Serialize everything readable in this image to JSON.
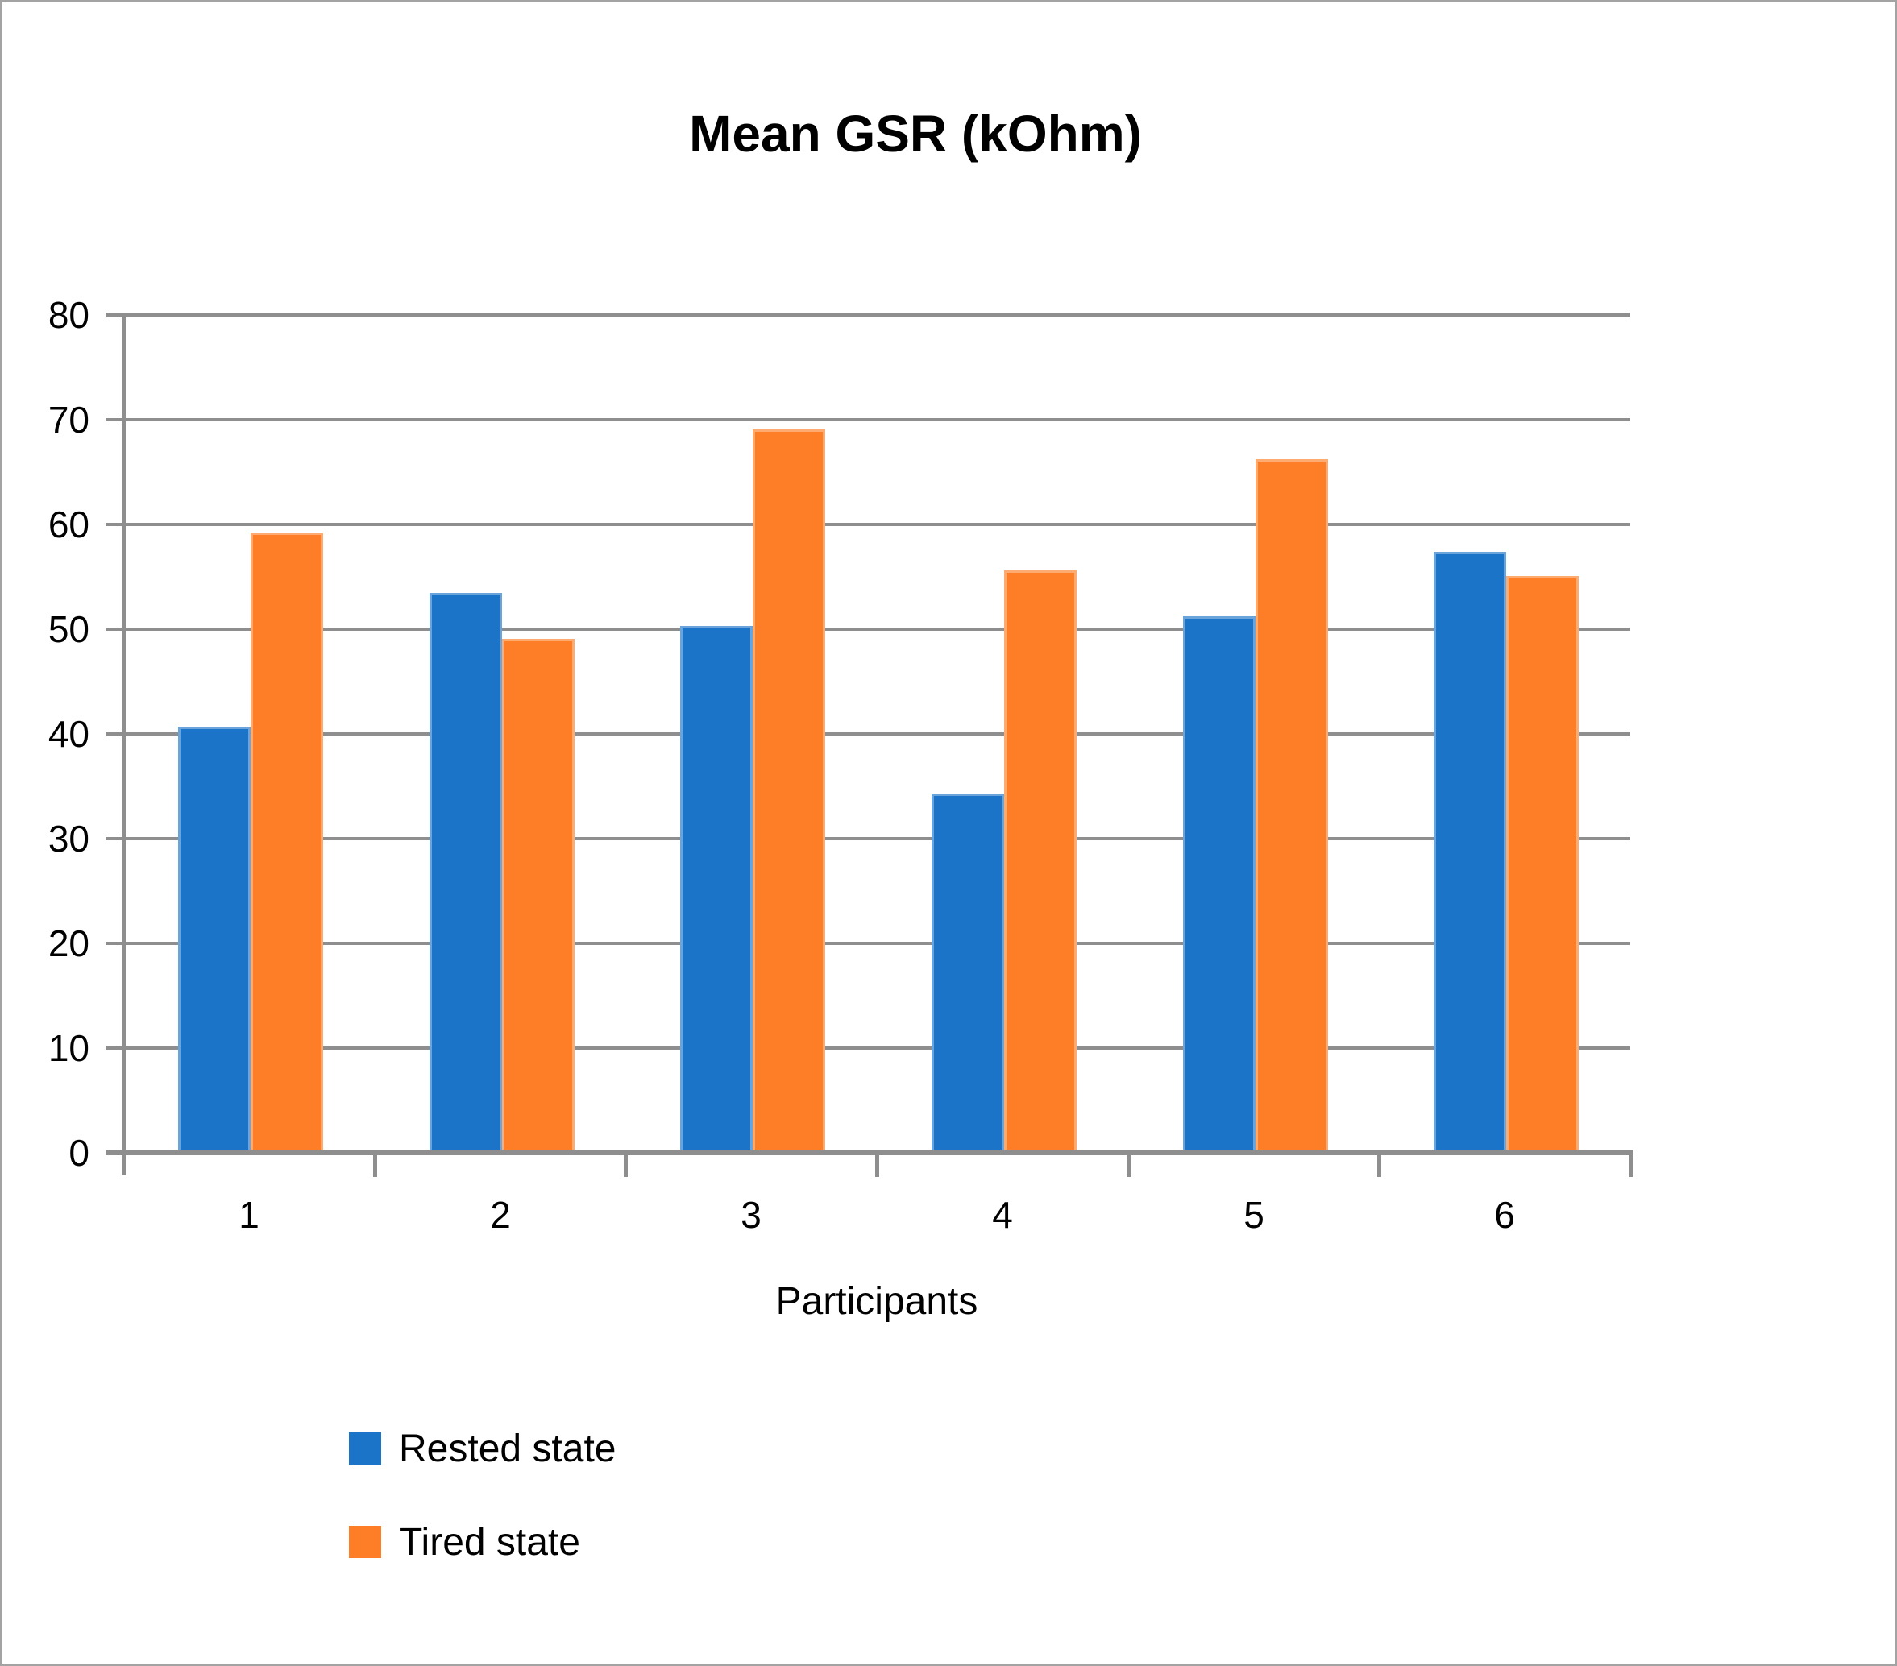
{
  "title": "Mean GSR (kOhm)",
  "x_axis": {
    "label": "Participants",
    "categories": [
      "1",
      "2",
      "3",
      "4",
      "5",
      "6"
    ]
  },
  "y_axis": {
    "ticks": [
      80,
      70,
      60,
      50,
      40,
      30,
      20,
      10,
      0
    ],
    "min": 0,
    "max": 80
  },
  "legend": [
    {
      "label": "Rested state",
      "color": "#1b74c8"
    },
    {
      "label": "Tired state",
      "color": "#fd7e27"
    }
  ],
  "colors": {
    "rested": "#1b74c8",
    "tired": "#fd7e27",
    "gridline": "#8e8e8e",
    "axis": "#8e8e8e",
    "border": "#a3a3a3",
    "text": "#000000"
  },
  "chart_data": {
    "type": "bar",
    "categories": [
      "1",
      "2",
      "3",
      "4",
      "5",
      "6"
    ],
    "series": [
      {
        "name": "Rested state",
        "color": "#1b74c8",
        "values": [
          40.7,
          53.5,
          50.3,
          34.3,
          51.2,
          57.4
        ]
      },
      {
        "name": "Tired state",
        "color": "#fd7e27",
        "values": [
          59.2,
          49.1,
          69.1,
          55.6,
          66.2,
          55.1
        ]
      }
    ],
    "title": "Mean GSR (kOhm)",
    "xlabel": "Participants",
    "ylabel": "",
    "ylim": [
      0,
      80
    ],
    "ytick_step": 10,
    "grid": true,
    "legend_position": "bottom-left"
  }
}
